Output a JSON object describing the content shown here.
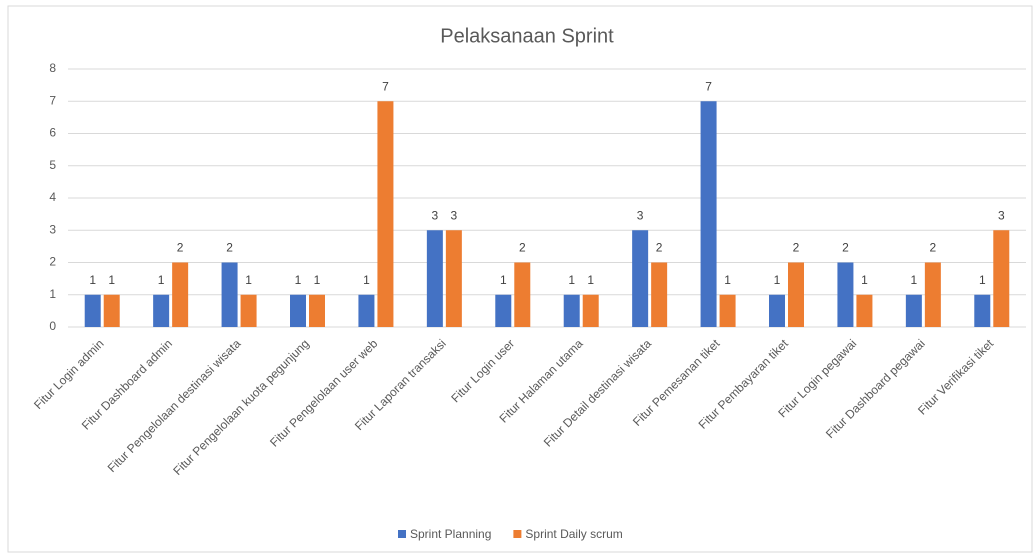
{
  "chart_data": {
    "type": "bar",
    "title": "Pelaksanaan Sprint",
    "categories": [
      "Fitur Login admin",
      "Fitur Dashboard admin",
      "Fitur Pengelolaan destinasi wisata",
      "Fitur Pengelolaan kuota pegunjung",
      "Fitur Pengelolaan user web",
      "Fitur Laporan transaksi",
      "Fitur Login user",
      "Fitur Halaman utama",
      "Fitur Detail destinasi wisata",
      "Fitur Pemesanan tiket",
      "Fitur Pembayaran tiket",
      "Fitur Login pegawai",
      "Fitur Dashboard pegawai",
      "Fitur Verifikasi tiket"
    ],
    "series": [
      {
        "name": "Sprint Planning",
        "color": "#4472c4",
        "values": [
          1,
          1,
          2,
          1,
          1,
          3,
          1,
          1,
          3,
          7,
          1,
          2,
          1,
          1
        ]
      },
      {
        "name": "Sprint Daily scrum",
        "color": "#ed7d31",
        "values": [
          1,
          2,
          1,
          1,
          7,
          3,
          2,
          1,
          2,
          1,
          2,
          1,
          2,
          3
        ]
      }
    ],
    "ylim": [
      0,
      8
    ],
    "yticks": [
      0,
      1,
      2,
      3,
      4,
      5,
      6,
      7,
      8
    ],
    "grid": true,
    "legend": "bottom"
  }
}
